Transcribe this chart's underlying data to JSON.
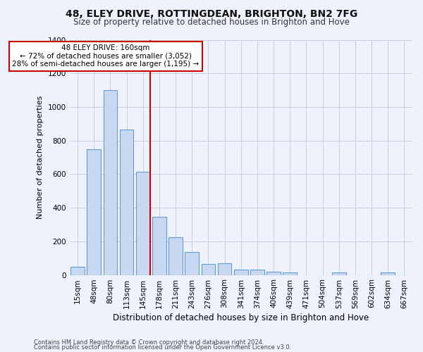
{
  "title1": "48, ELEY DRIVE, ROTTINGDEAN, BRIGHTON, BN2 7FG",
  "title2": "Size of property relative to detached houses in Brighton and Hove",
  "xlabel": "Distribution of detached houses by size in Brighton and Hove",
  "ylabel": "Number of detached properties",
  "footnote1": "Contains HM Land Registry data © Crown copyright and database right 2024.",
  "footnote2": "Contains public sector information licensed under the Open Government Licence v3.0.",
  "categories": [
    "15sqm",
    "48sqm",
    "80sqm",
    "113sqm",
    "145sqm",
    "178sqm",
    "211sqm",
    "243sqm",
    "276sqm",
    "308sqm",
    "341sqm",
    "374sqm",
    "406sqm",
    "439sqm",
    "471sqm",
    "504sqm",
    "537sqm",
    "569sqm",
    "602sqm",
    "634sqm",
    "667sqm"
  ],
  "values": [
    50,
    750,
    1100,
    865,
    615,
    345,
    225,
    135,
    65,
    70,
    30,
    30,
    20,
    15,
    0,
    0,
    15,
    0,
    0,
    15,
    0
  ],
  "bar_color": "#c8d8f0",
  "bar_edge_color": "#6699cc",
  "vline_color": "#cc0000",
  "vline_x_index": 4,
  "annotation_text": "48 ELEY DRIVE: 160sqm\n← 72% of detached houses are smaller (3,052)\n28% of semi-detached houses are larger (1,195) →",
  "annotation_box_facecolor": "#ffffff",
  "annotation_box_edgecolor": "#cc0000",
  "ylim": [
    0,
    1400
  ],
  "yticks": [
    0,
    200,
    400,
    600,
    800,
    1000,
    1200,
    1400
  ],
  "grid_color": "#ccccdd",
  "background_color": "#eef2fc",
  "title1_fontsize": 10,
  "title2_fontsize": 8.5,
  "ylabel_fontsize": 8,
  "xlabel_fontsize": 8.5,
  "tick_fontsize": 7.5,
  "annotation_fontsize": 7.5,
  "footnote_fontsize": 6
}
